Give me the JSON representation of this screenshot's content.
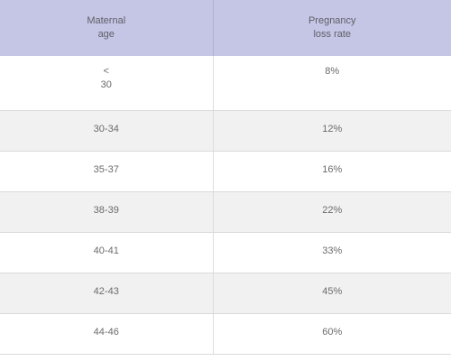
{
  "table": {
    "headers": {
      "col1_line1": "Maternal",
      "col1_line2": "age",
      "col2_line1": "Pregnancy",
      "col2_line2": "loss rate"
    },
    "first_row": {
      "age_symbol": "<",
      "age_value": "30",
      "rate": "8%"
    },
    "rows": [
      {
        "age": "30-34",
        "rate": "12%"
      },
      {
        "age": "35-37",
        "rate": "16%"
      },
      {
        "age": "38-39",
        "rate": "22%"
      },
      {
        "age": "40-41",
        "rate": "33%"
      },
      {
        "age": "42-43",
        "rate": "45%"
      },
      {
        "age": "44-46",
        "rate": "60%"
      }
    ]
  }
}
